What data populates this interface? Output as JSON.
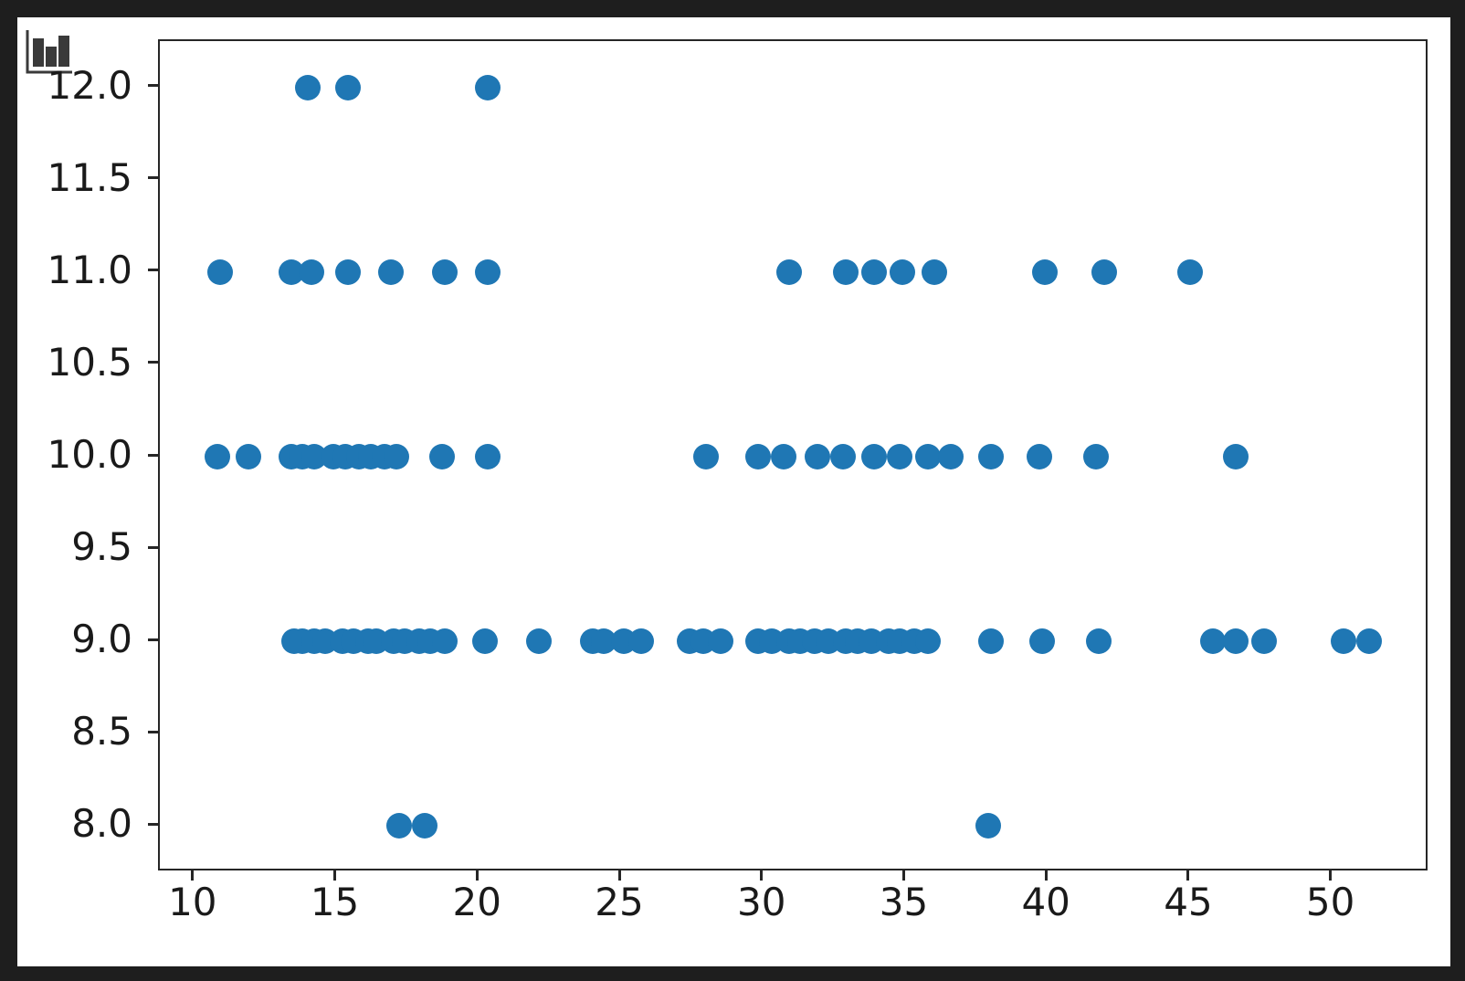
{
  "window": {
    "background_color": "#1e1e1e",
    "figure_background": "#ffffff",
    "icon": "bar-chart-icon"
  },
  "chart_data": {
    "type": "scatter",
    "title": "",
    "xlabel": "",
    "ylabel": "",
    "grid": false,
    "legend": null,
    "marker_color": "#1f77b4",
    "marker_diameter_px": 28,
    "axis_color": "#262626",
    "tick_label_color": "#1a1a1a",
    "xlim": [
      8.85,
      53.35
    ],
    "ylim": [
      7.76,
      12.24
    ],
    "x_ticks": [
      10,
      15,
      20,
      25,
      30,
      35,
      40,
      45,
      50
    ],
    "x_tick_labels": [
      "10",
      "15",
      "20",
      "25",
      "30",
      "35",
      "40",
      "45",
      "50"
    ],
    "y_ticks": [
      8.0,
      8.5,
      9.0,
      9.5,
      10.0,
      10.5,
      11.0,
      11.5,
      12.0
    ],
    "y_tick_labels": [
      "8.0",
      "8.5",
      "9.0",
      "9.5",
      "10.0",
      "10.5",
      "11.0",
      "11.5",
      "12.0"
    ],
    "series": [
      {
        "y": 12,
        "x_values": [
          14.0,
          15.4,
          20.3
        ]
      },
      {
        "y": 11,
        "x_values": [
          10.9,
          13.4,
          14.1,
          15.4,
          16.9,
          18.8,
          20.3,
          30.9,
          32.9,
          33.9,
          34.9,
          36.0,
          39.9,
          42.0,
          45.0
        ]
      },
      {
        "y": 10,
        "x_values": [
          10.8,
          11.9,
          13.4,
          13.8,
          14.2,
          14.9,
          15.3,
          15.8,
          16.2,
          16.7,
          17.1,
          18.7,
          20.3,
          28.0,
          29.8,
          30.7,
          31.9,
          32.8,
          33.9,
          34.8,
          35.8,
          36.6,
          38.0,
          39.7,
          41.7,
          46.6
        ]
      },
      {
        "y": 9,
        "x_values": [
          13.5,
          13.8,
          14.2,
          14.6,
          15.2,
          15.6,
          16.1,
          16.4,
          17.0,
          17.4,
          17.9,
          18.3,
          18.8,
          20.2,
          22.1,
          24.0,
          24.4,
          25.1,
          25.7,
          27.4,
          27.9,
          28.5,
          29.8,
          30.3,
          30.9,
          31.3,
          31.8,
          32.3,
          32.9,
          33.3,
          33.8,
          34.4,
          34.8,
          35.3,
          35.8,
          38.0,
          39.8,
          41.8,
          45.8,
          46.6,
          47.6,
          50.4,
          51.3
        ]
      },
      {
        "y": 8,
        "x_values": [
          17.2,
          18.1,
          37.9
        ]
      }
    ]
  }
}
